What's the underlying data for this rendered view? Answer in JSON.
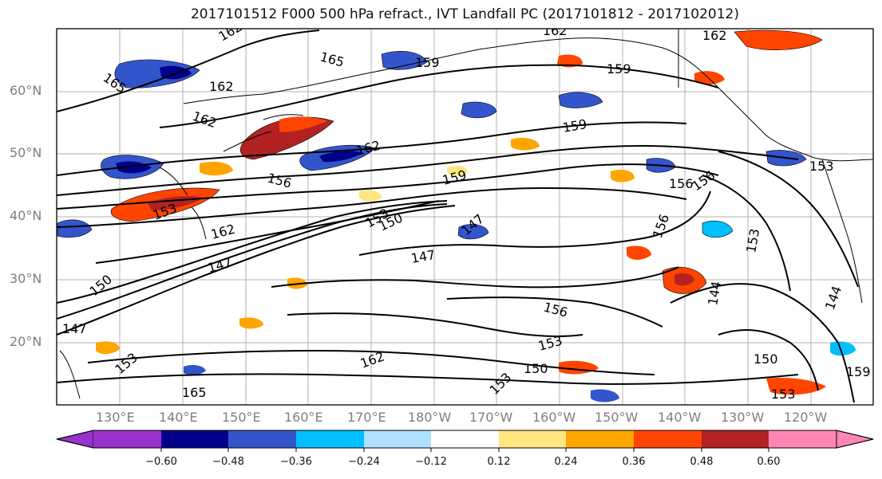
{
  "title": "2017101512 F000 500 hPa refract., IVT Landfall PC (2017101812 - 2017102012)",
  "map": {
    "lat_labels": [
      "60°N",
      "50°N",
      "40°N",
      "30°N",
      "20°N"
    ],
    "lon_labels": [
      "130°E",
      "140°E",
      "150°E",
      "160°E",
      "170°E",
      "180°W",
      "170°W",
      "160°W",
      "150°W",
      "140°W",
      "130°W",
      "120°W"
    ],
    "lat_range": [
      10,
      70
    ],
    "lon_range": [
      120,
      250
    ],
    "contour_labels": [
      "162",
      "165",
      "162",
      "162",
      "159",
      "165",
      "162",
      "159",
      "159",
      "162",
      "156",
      "153",
      "159",
      "156",
      "153",
      "162",
      "147",
      "147",
      "147",
      "156",
      "150",
      "153",
      "150",
      "156",
      "153",
      "147",
      "153",
      "162",
      "165",
      "150",
      "153",
      "159",
      "150",
      "144",
      "153",
      "156",
      "162",
      "153",
      "144"
    ]
  },
  "colorbar": {
    "ticks": [
      "−0.60",
      "−0.48",
      "−0.36",
      "−0.24",
      "−0.12",
      "0.12",
      "0.24",
      "0.36",
      "0.48",
      "0.60"
    ],
    "colors": [
      "#9932cc",
      "#00008b",
      "#3355cc",
      "#00bfff",
      "#b0e0ff",
      "#ffffff",
      "#ffe680",
      "#ffa500",
      "#ff4500",
      "#b22222",
      "#ff85b3"
    ]
  }
}
